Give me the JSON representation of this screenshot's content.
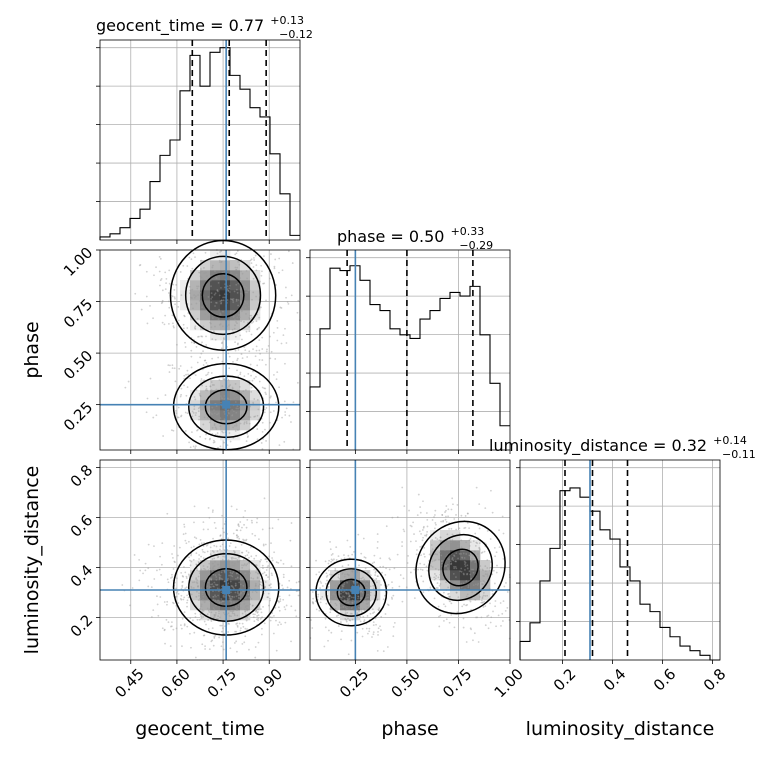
{
  "chart_data": {
    "type": "corner",
    "grid": true,
    "truth_color": "#4682b4",
    "line_color": "#000000",
    "parameters": [
      {
        "name": "geocent_time",
        "xlabel": "geocent_time",
        "range": [
          0.35,
          1.0
        ],
        "ticks": [
          0.45,
          0.6,
          0.75,
          0.9
        ],
        "tick_labels": [
          "0.45",
          "0.60",
          "0.75",
          "0.90"
        ],
        "truth": 0.76,
        "quantiles": [
          0.65,
          0.77,
          0.89
        ],
        "title": {
          "label": "geocent_time = 0.77",
          "plus": "+0.13",
          "minus": "−0.12"
        },
        "hist_edges": [
          0.35,
          0.3825,
          0.415,
          0.4475,
          0.48,
          0.5125,
          0.545,
          0.5775,
          0.61,
          0.6425,
          0.675,
          0.7075,
          0.74,
          0.7725,
          0.805,
          0.8375,
          0.87,
          0.9025,
          0.935,
          0.9675,
          1.0
        ],
        "hist": [
          2,
          4,
          8,
          14,
          20,
          38,
          55,
          65,
          97,
          120,
          100,
          122,
          125,
          107,
          98,
          86,
          80,
          56,
          30,
          3
        ],
        "hist_max": 130
      },
      {
        "name": "phase",
        "xlabel": "phase",
        "ylabel": "phase",
        "range": [
          0.03,
          1.0
        ],
        "ticks": [
          0.25,
          0.5,
          0.75,
          1.0
        ],
        "tick_labels": [
          "0.25",
          "0.50",
          "0.75",
          "1.00"
        ],
        "y_ticks": [
          0.25,
          0.5,
          0.75,
          1.0
        ],
        "y_tick_labels": [
          "0.25",
          "0.50",
          "0.75",
          "1.00"
        ],
        "truth": 0.25,
        "quantiles": [
          0.21,
          0.5,
          0.82
        ],
        "title": {
          "label": "phase = 0.50",
          "plus": "+0.33",
          "minus": "−0.29"
        },
        "hist_edges": [
          0.03,
          0.0785,
          0.127,
          0.1755,
          0.224,
          0.2725,
          0.321,
          0.3695,
          0.418,
          0.4665,
          0.515,
          0.5635,
          0.612,
          0.6605,
          0.709,
          0.7575,
          0.806,
          0.8545,
          0.903,
          0.9515,
          1.0
        ],
        "hist": [
          52,
          100,
          150,
          148,
          152,
          140,
          120,
          115,
          100,
          95,
          92,
          108,
          115,
          125,
          130,
          127,
          135,
          95,
          55,
          20
        ],
        "hist_max": 165
      },
      {
        "name": "luminosity_distance",
        "xlabel": "luminosity_distance",
        "ylabel": "luminosity_distance",
        "range": [
          0.03,
          0.83
        ],
        "ticks": [
          0.2,
          0.4,
          0.6,
          0.8
        ],
        "tick_labels": [
          "0.2",
          "0.4",
          "0.6",
          "0.8"
        ],
        "y_ticks": [
          0.2,
          0.4,
          0.6,
          0.8
        ],
        "y_tick_labels": [
          "0.2",
          "0.4",
          "0.6",
          "0.8"
        ],
        "truth": 0.31,
        "quantiles": [
          0.21,
          0.32,
          0.46
        ],
        "title": {
          "label": "luminosity_distance = 0.32",
          "plus": "+0.14",
          "minus": "−0.11"
        },
        "hist_edges": [
          0.03,
          0.07,
          0.11,
          0.15,
          0.19,
          0.23,
          0.27,
          0.31,
          0.35,
          0.39,
          0.43,
          0.47,
          0.51,
          0.55,
          0.59,
          0.63,
          0.67,
          0.71,
          0.75,
          0.79,
          0.83
        ],
        "hist": [
          20,
          40,
          85,
          120,
          182,
          185,
          175,
          160,
          140,
          130,
          100,
          85,
          60,
          52,
          35,
          25,
          15,
          10,
          5,
          0
        ],
        "hist_max": 215
      }
    ]
  }
}
